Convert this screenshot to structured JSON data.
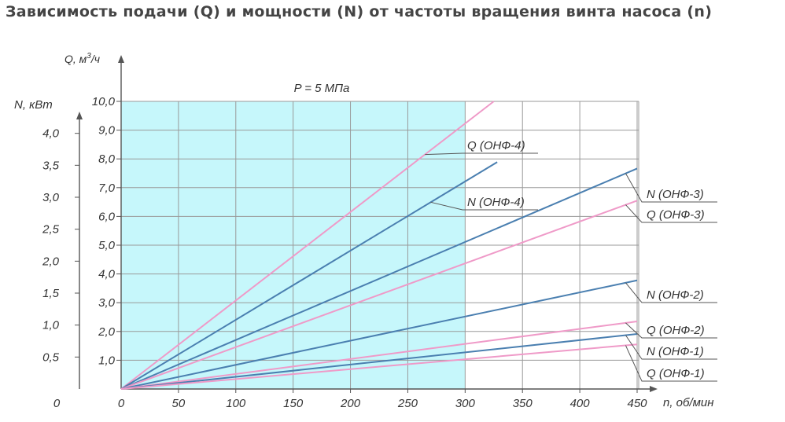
{
  "page_title": "Зависимость подачи (Q) и мощности (N) от частоты вращения винта насоса (n)",
  "chart_data": {
    "type": "line",
    "title": "Зависимость подачи (Q) и мощности (N) от частоты вращения винта насоса (n)",
    "annotation": "P = 5 МПа",
    "xlabel": "n, об/мин",
    "ylabel_left_outer": "N, кВт",
    "ylabel_left_inner": "Q, м³/ч",
    "ylabel_left_inner_parts": {
      "base": "Q, м",
      "sup": "3",
      "tail": "/ч"
    },
    "xlim": [
      0,
      450
    ],
    "ylim_Q": [
      0,
      10
    ],
    "ylim_N": [
      0,
      4.5
    ],
    "x_ticks": [
      "0",
      "50",
      "100",
      "150",
      "200",
      "250",
      "300",
      "350",
      "400",
      "450"
    ],
    "q_ticks": [
      "1,0",
      "2,0",
      "3,0",
      "4,0",
      "5,0",
      "6,0",
      "7,0",
      "8,0",
      "9,0",
      "10,0"
    ],
    "n_ticks": [
      "0",
      "0,5",
      "1,0",
      "1,5",
      "2,0",
      "2,5",
      "3,0",
      "3,5",
      "4,0"
    ],
    "highlight_region_x": [
      0,
      300
    ],
    "grid": true,
    "colors": {
      "Q": "#ef9ac8",
      "N": "#4a7fb0",
      "highlight": "#c6f7fb",
      "grid": "#9a9a9a",
      "axis": "#555555",
      "text": "#333333"
    },
    "series": [
      {
        "name": "Q (ОНФ-4)",
        "quantity": "Q",
        "points": [
          [
            0,
            0
          ],
          [
            325,
            10.0
          ]
        ]
      },
      {
        "name": "N (ОНФ-4)",
        "quantity": "N",
        "points": [
          [
            0,
            0
          ],
          [
            328,
            3.55
          ]
        ]
      },
      {
        "name": "N (ОНФ-3)",
        "quantity": "N",
        "points": [
          [
            0,
            0
          ],
          [
            450,
            3.45
          ]
        ]
      },
      {
        "name": "Q (ОНФ-3)",
        "quantity": "Q",
        "points": [
          [
            0,
            0
          ],
          [
            450,
            6.55
          ]
        ]
      },
      {
        "name": "N (ОНФ-2)",
        "quantity": "N",
        "points": [
          [
            0,
            0
          ],
          [
            450,
            1.7
          ]
        ]
      },
      {
        "name": "Q (ОНФ-2)",
        "quantity": "Q",
        "points": [
          [
            0,
            0
          ],
          [
            450,
            2.35
          ]
        ]
      },
      {
        "name": "N (ОНФ-1)",
        "quantity": "N",
        "points": [
          [
            0,
            0
          ],
          [
            450,
            0.86
          ]
        ]
      },
      {
        "name": "Q (ОНФ-1)",
        "quantity": "Q",
        "points": [
          [
            0,
            0
          ],
          [
            450,
            1.55
          ]
        ]
      }
    ]
  }
}
